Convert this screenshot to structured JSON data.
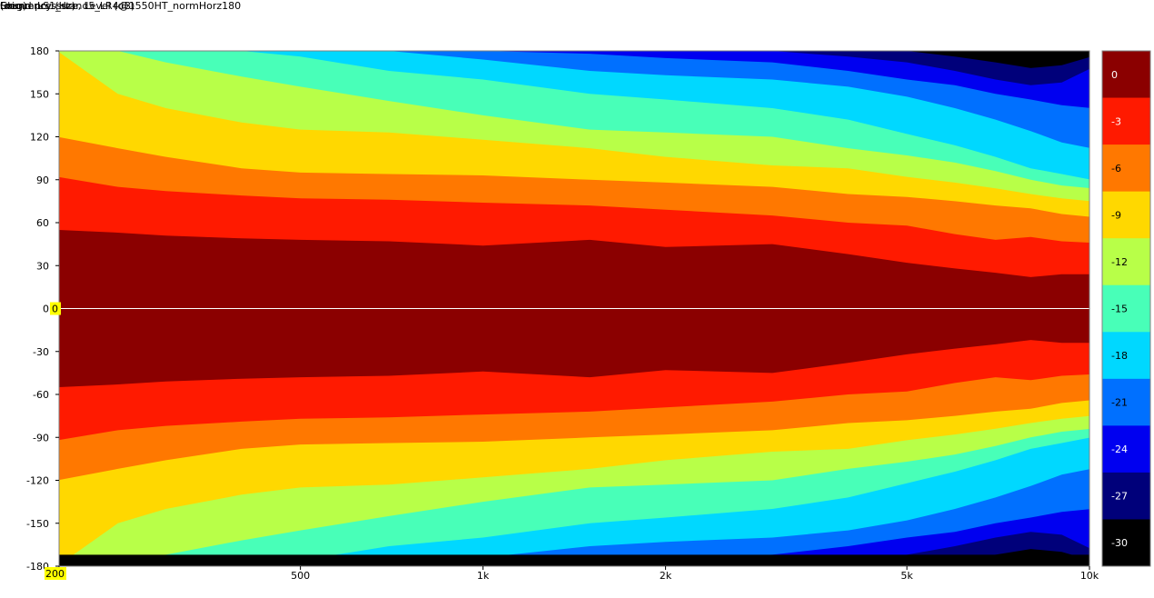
{
  "chart_data": {
    "type": "heatmap",
    "title": "Grimm LS1_stand5_LR4@1550HT_normHorz180",
    "ylabel": "(deg)",
    "xlabel": "Frequency  (Hz)",
    "colorbar_label": "Sound pressure, Level  (dB)",
    "x_scale": "log",
    "xlim": [
      200,
      10000
    ],
    "ylim": [
      -180,
      180
    ],
    "x_ticks": [
      {
        "value": 200,
        "label": "200"
      },
      {
        "value": 500,
        "label": "500"
      },
      {
        "value": 1000,
        "label": "1k"
      },
      {
        "value": 2000,
        "label": "2k"
      },
      {
        "value": 5000,
        "label": "5k"
      },
      {
        "value": 10000,
        "label": "10k"
      }
    ],
    "y_ticks": [
      180,
      150,
      120,
      90,
      60,
      30,
      0,
      -30,
      -60,
      -90,
      -120,
      -150,
      -180
    ],
    "cursor": {
      "y_label": "0",
      "x_label": "200"
    },
    "levels": [
      {
        "label": "0",
        "color": "#8b0000"
      },
      {
        "label": "-3",
        "color": "#ff1a00"
      },
      {
        "label": "-6",
        "color": "#ff7800"
      },
      {
        "label": "-9",
        "color": "#ffd800"
      },
      {
        "label": "-12",
        "color": "#b8ff48"
      },
      {
        "label": "-15",
        "color": "#48ffb8"
      },
      {
        "label": "-18",
        "color": "#00d8ff"
      },
      {
        "label": "-21",
        "color": "#0070ff"
      },
      {
        "label": "-24",
        "color": "#0000f0"
      },
      {
        "label": "-27",
        "color": "#00007a"
      },
      {
        "label": "-30",
        "color": "#000000"
      }
    ],
    "contours": {
      "frequencies": [
        200,
        250,
        300,
        400,
        500,
        700,
        1000,
        1500,
        2000,
        3000,
        4000,
        5000,
        6000,
        7000,
        8000,
        9000,
        10000
      ],
      "boundary_angles": [
        [
          55,
          53,
          51,
          49,
          48,
          47,
          44,
          48,
          43,
          45,
          38,
          32,
          28,
          25,
          22,
          24,
          24
        ],
        [
          92,
          85,
          82,
          79,
          77,
          76,
          74,
          72,
          69,
          65,
          60,
          58,
          52,
          48,
          50,
          47,
          46
        ],
        [
          120,
          112,
          106,
          98,
          95,
          94,
          93,
          90,
          88,
          85,
          80,
          78,
          75,
          72,
          70,
          66,
          64
        ],
        [
          180,
          150,
          140,
          130,
          125,
          123,
          118,
          112,
          106,
          100,
          98,
          92,
          88,
          84,
          80,
          77,
          75
        ],
        [
          180,
          180,
          172,
          162,
          155,
          145,
          135,
          125,
          123,
          120,
          112,
          107,
          102,
          96,
          90,
          86,
          84
        ],
        [
          180,
          180,
          180,
          180,
          176,
          166,
          160,
          150,
          146,
          140,
          132,
          122,
          114,
          106,
          98,
          94,
          90
        ],
        [
          180,
          180,
          180,
          180,
          180,
          180,
          174,
          166,
          163,
          160,
          155,
          148,
          140,
          132,
          124,
          116,
          112
        ],
        [
          180,
          180,
          180,
          180,
          180,
          180,
          180,
          178,
          175,
          172,
          166,
          160,
          156,
          150,
          146,
          142,
          140
        ],
        [
          180,
          180,
          180,
          180,
          180,
          180,
          180,
          180,
          180,
          180,
          176,
          172,
          166,
          160,
          156,
          158,
          168
        ],
        [
          180,
          180,
          180,
          180,
          180,
          180,
          180,
          180,
          180,
          180,
          180,
          180,
          176,
          172,
          168,
          170,
          176
        ]
      ]
    }
  }
}
